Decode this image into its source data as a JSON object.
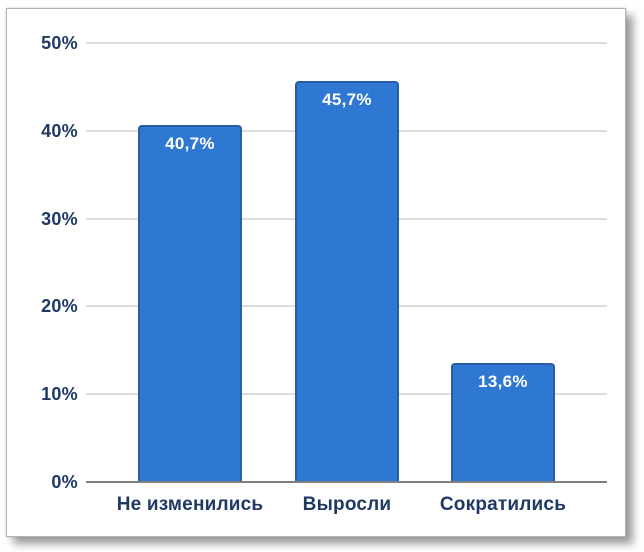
{
  "chart_data": {
    "type": "bar",
    "title": "",
    "xlabel": "",
    "ylabel": "",
    "categories": [
      "Не изменились",
      "Выросли",
      "Сократились"
    ],
    "values": [
      40.7,
      45.7,
      13.6
    ],
    "value_labels": [
      "40,7%",
      "45,7%",
      "13,6%"
    ],
    "yticks": [
      0,
      10,
      20,
      30,
      40,
      50
    ],
    "ytick_labels": [
      "0%",
      "10%",
      "20%",
      "30%",
      "40%",
      "50%"
    ],
    "ylim": [
      0,
      50
    ],
    "grid": true,
    "legend": false,
    "colors": {
      "bar_fill": "#2E77D2",
      "bar_border": "#2A5EA4",
      "value_label_text": "#FFFFFF",
      "axis_text": "#1F3864",
      "gridline": "#DCDCDC",
      "baseline": "#808080",
      "card_background": "#FFFFFF"
    }
  }
}
